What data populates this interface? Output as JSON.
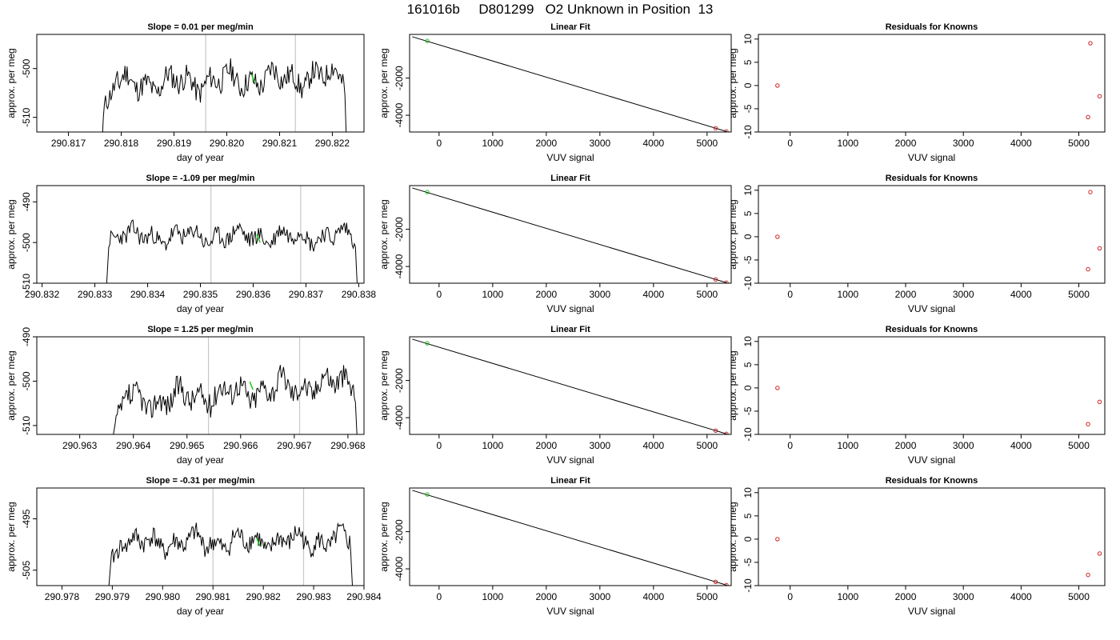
{
  "figure": {
    "title": "161016b     D801299   O2 Unknown in Position  13"
  },
  "chart_data": [
    {
      "type": "line",
      "panel": "timeseries-1",
      "title": "Slope =  0.01  per meg/min",
      "xlabel": "day of year",
      "ylabel": "approx. per meg",
      "xlim": [
        290.8164,
        290.8226
      ],
      "ylim": [
        -513,
        -493
      ],
      "xticks": [
        "290.817",
        "290.818",
        "290.819",
        "290.820",
        "290.821",
        "290.822"
      ],
      "xtick_values": [
        290.817,
        290.818,
        290.819,
        290.82,
        290.821,
        290.822
      ],
      "yticks": [
        -510,
        -500
      ],
      "ytick_labels": [
        "-510",
        "-500"
      ],
      "vlines": [
        290.8196,
        290.8213
      ],
      "marker": {
        "x": 290.8205,
        "y": -502
      },
      "trace": {
        "x_start": 290.8176,
        "x_end": 290.8223,
        "start_y": -523,
        "rise_y": -508,
        "base": -502.5,
        "amp": 2.2,
        "drift": 2.0,
        "seed": 11,
        "end_y": -526
      }
    },
    {
      "type": "line",
      "panel": "timeseries-2",
      "title": "Slope =  -1.09  per meg/min",
      "xlabel": "day of year",
      "ylabel": "approx. per meg",
      "xlim": [
        290.8319,
        290.8381
      ],
      "ylim": [
        -510,
        -486
      ],
      "xticks": [
        "290.832",
        "290.833",
        "290.834",
        "290.835",
        "290.836",
        "290.837",
        "290.838"
      ],
      "xtick_values": [
        290.832,
        290.833,
        290.834,
        290.835,
        290.836,
        290.837,
        290.838
      ],
      "yticks": [
        -510,
        -500,
        -490
      ],
      "ytick_labels": [
        "-510",
        "-500",
        "-490"
      ],
      "vlines": [
        290.8352,
        290.8369
      ],
      "marker": {
        "x": 290.8361,
        "y": -499
      },
      "trace": {
        "x_start": 290.8332,
        "x_end": 290.838,
        "start_y": -516,
        "rise_y": -499,
        "base": -498.5,
        "amp": 2.0,
        "drift": 0.4,
        "seed": 23,
        "end_y": -518
      }
    },
    {
      "type": "line",
      "panel": "timeseries-3",
      "title": "Slope =  1.25  per meg/min",
      "xlabel": "day of year",
      "ylabel": "approx. per meg",
      "xlim": [
        290.9622,
        290.9683
      ],
      "ylim": [
        -512,
        -490
      ],
      "xticks": [
        "290.963",
        "290.964",
        "290.965",
        "290.966",
        "290.967",
        "290.968"
      ],
      "xtick_values": [
        290.963,
        290.964,
        290.965,
        290.966,
        290.967,
        290.968
      ],
      "yticks": [
        -510,
        -500,
        -490
      ],
      "ytick_labels": [
        "-510",
        "-500",
        "-490"
      ],
      "vlines": [
        290.9654,
        290.9671
      ],
      "marker": {
        "x": 290.9662,
        "y": -501
      },
      "trace": {
        "x_start": 290.9636,
        "x_end": 290.9682,
        "start_y": -514,
        "rise_y": -509,
        "base": -502.5,
        "amp": 2.5,
        "drift": 5.5,
        "seed": 37,
        "end_y": -520
      }
    },
    {
      "type": "line",
      "panel": "timeseries-4",
      "title": "Slope =  -0.31  per meg/min",
      "xlabel": "day of year",
      "ylabel": "approx. per meg",
      "xlim": [
        290.9775,
        290.984
      ],
      "ylim": [
        -508,
        -489
      ],
      "xticks": [
        "290.978",
        "290.979",
        "290.980",
        "290.981",
        "290.982",
        "290.983",
        "290.984"
      ],
      "xtick_values": [
        290.978,
        290.979,
        290.98,
        290.981,
        290.982,
        290.983,
        290.984
      ],
      "yticks": [
        -505,
        -495
      ],
      "ytick_labels": [
        "-505",
        "-495"
      ],
      "vlines": [
        290.981,
        290.9828
      ],
      "marker": {
        "x": 290.9819,
        "y": -499.5
      },
      "trace": {
        "x_start": 290.9789,
        "x_end": 290.9838,
        "start_y": -512,
        "rise_y": -503,
        "base": -499.5,
        "amp": 1.8,
        "drift": 0.5,
        "seed": 41,
        "end_y": -514
      }
    },
    {
      "type": "scatter",
      "panel": "linear-fit-1",
      "title": "Linear Fit",
      "xlabel": "VUV signal",
      "ylabel": "approx. per meg",
      "xlim": [
        -550,
        5450
      ],
      "ylim": [
        -4900,
        350
      ],
      "xticks": [
        0,
        1000,
        2000,
        3000,
        4000,
        5000
      ],
      "yticks": [
        -4000,
        -2000
      ],
      "line": {
        "x": [
          -500,
          5370
        ],
        "y": [
          224,
          -4880
        ]
      },
      "points": [
        {
          "x": -220,
          "y": 0,
          "color": "#22bb22"
        },
        {
          "x": 5160,
          "y": -4697,
          "color": "#cc2222"
        },
        {
          "x": 5360,
          "y": -4873,
          "color": "#cc2222"
        }
      ]
    },
    {
      "type": "scatter",
      "panel": "linear-fit-2",
      "title": "Linear Fit",
      "xlabel": "VUV signal",
      "ylabel": "approx. per meg",
      "xlim": [
        -550,
        5450
      ],
      "ylim": [
        -4900,
        350
      ],
      "xticks": [
        0,
        1000,
        2000,
        3000,
        4000,
        5000
      ],
      "yticks": [
        -4000,
        -2000
      ],
      "line": {
        "x": [
          -500,
          5370
        ],
        "y": [
          224,
          -4880
        ]
      },
      "points": [
        {
          "x": -220,
          "y": 0,
          "color": "#22bb22"
        },
        {
          "x": 5160,
          "y": -4697,
          "color": "#cc2222"
        },
        {
          "x": 5360,
          "y": -4873,
          "color": "#cc2222"
        }
      ]
    },
    {
      "type": "scatter",
      "panel": "linear-fit-3",
      "title": "Linear Fit",
      "xlabel": "VUV signal",
      "ylabel": "approx. per meg",
      "xlim": [
        -550,
        5450
      ],
      "ylim": [
        -4900,
        350
      ],
      "xticks": [
        0,
        1000,
        2000,
        3000,
        4000,
        5000
      ],
      "yticks": [
        -4000,
        -2000
      ],
      "line": {
        "x": [
          -500,
          5370
        ],
        "y": [
          224,
          -4880
        ]
      },
      "points": [
        {
          "x": -220,
          "y": 0,
          "color": "#22bb22"
        },
        {
          "x": 5160,
          "y": -4697,
          "color": "#cc2222"
        },
        {
          "x": 5360,
          "y": -4873,
          "color": "#cc2222"
        }
      ]
    },
    {
      "type": "scatter",
      "panel": "linear-fit-4",
      "title": "Linear Fit",
      "xlabel": "VUV signal",
      "ylabel": "approx. per meg",
      "xlim": [
        -550,
        5450
      ],
      "ylim": [
        -4900,
        350
      ],
      "xticks": [
        0,
        1000,
        2000,
        3000,
        4000,
        5000
      ],
      "yticks": [
        -4000,
        -2000
      ],
      "line": {
        "x": [
          -500,
          5370
        ],
        "y": [
          224,
          -4880
        ]
      },
      "points": [
        {
          "x": -220,
          "y": 0,
          "color": "#22bb22"
        },
        {
          "x": 5160,
          "y": -4697,
          "color": "#cc2222"
        },
        {
          "x": 5360,
          "y": -4873,
          "color": "#cc2222"
        }
      ]
    },
    {
      "type": "scatter",
      "panel": "residuals-1",
      "title": "Residuals for Knowns",
      "xlabel": "VUV signal",
      "ylabel": "approx. per meg",
      "xlim": [
        -550,
        5450
      ],
      "ylim": [
        -10,
        11
      ],
      "xticks": [
        0,
        1000,
        2000,
        3000,
        4000,
        5000
      ],
      "yticks": [
        -10,
        -5,
        0,
        5,
        10
      ],
      "points": [
        {
          "x": -220,
          "y": 0
        },
        {
          "x": 5200,
          "y": 9.1
        },
        {
          "x": 5160,
          "y": -6.8
        },
        {
          "x": 5360,
          "y": -2.3
        }
      ]
    },
    {
      "type": "scatter",
      "panel": "residuals-2",
      "title": "Residuals for Knowns",
      "xlabel": "VUV signal",
      "ylabel": "approx. per meg",
      "xlim": [
        -550,
        5450
      ],
      "ylim": [
        -10,
        11
      ],
      "xticks": [
        0,
        1000,
        2000,
        3000,
        4000,
        5000
      ],
      "yticks": [
        -10,
        -5,
        0,
        5,
        10
      ],
      "points": [
        {
          "x": -220,
          "y": 0
        },
        {
          "x": 5200,
          "y": 9.6
        },
        {
          "x": 5160,
          "y": -7.0
        },
        {
          "x": 5360,
          "y": -2.5
        }
      ]
    },
    {
      "type": "scatter",
      "panel": "residuals-3",
      "title": "Residuals for Knowns",
      "xlabel": "VUV signal",
      "ylabel": "approx. per meg",
      "xlim": [
        -550,
        5450
      ],
      "ylim": [
        -10,
        11
      ],
      "xticks": [
        0,
        1000,
        2000,
        3000,
        4000,
        5000
      ],
      "yticks": [
        -10,
        -5,
        0,
        5,
        10
      ],
      "points": [
        {
          "x": -220,
          "y": 0
        },
        {
          "x": 5160,
          "y": -7.8
        },
        {
          "x": 5360,
          "y": -3.0
        }
      ]
    },
    {
      "type": "scatter",
      "panel": "residuals-4",
      "title": "Residuals for Knowns",
      "xlabel": "VUV signal",
      "ylabel": "approx. per meg",
      "xlim": [
        -550,
        5450
      ],
      "ylim": [
        -10,
        11
      ],
      "xticks": [
        0,
        1000,
        2000,
        3000,
        4000,
        5000
      ],
      "yticks": [
        -10,
        -5,
        0,
        5,
        10
      ],
      "points": [
        {
          "x": -220,
          "y": 0
        },
        {
          "x": 5160,
          "y": -7.7
        },
        {
          "x": 5360,
          "y": -3.1
        }
      ]
    }
  ]
}
